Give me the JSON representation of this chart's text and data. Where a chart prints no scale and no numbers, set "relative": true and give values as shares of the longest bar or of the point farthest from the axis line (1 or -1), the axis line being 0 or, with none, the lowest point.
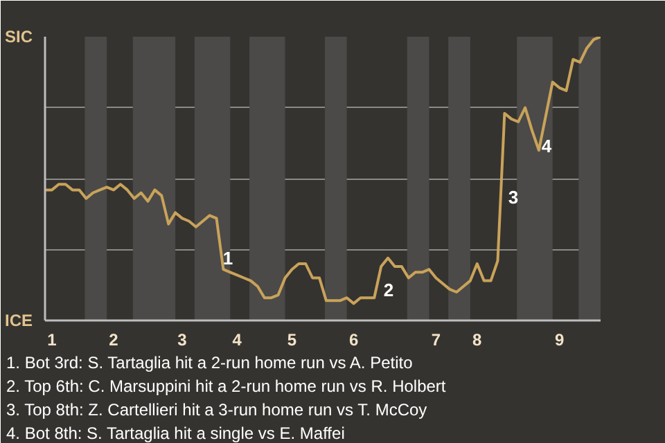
{
  "chart_data": {
    "type": "line",
    "relative": true,
    "categories": [
      null,
      "1",
      null,
      null,
      null,
      null,
      null,
      null,
      null,
      null,
      "2",
      null,
      null,
      null,
      null,
      null,
      null,
      null,
      null,
      null,
      "3",
      null,
      null,
      null,
      null,
      null,
      null,
      null,
      "4",
      null,
      null,
      null,
      null,
      null,
      null,
      null,
      "5",
      null,
      null,
      null,
      null,
      null,
      null,
      null,
      null,
      "6",
      null,
      null,
      null,
      null,
      null,
      null,
      null,
      null,
      null,
      null,
      null,
      "7",
      null,
      null,
      null,
      null,
      null,
      "8",
      null,
      null,
      null,
      null,
      null,
      null,
      null,
      null,
      null,
      null,
      null,
      "9",
      null,
      null,
      null,
      null,
      null,
      null
    ],
    "series": [
      {
        "color": "#c9a35a",
        "values": [
          0.46,
          0.46,
          0.48,
          0.48,
          0.46,
          0.46,
          0.43,
          0.45,
          0.46,
          0.47,
          0.46,
          0.48,
          0.46,
          0.43,
          0.45,
          0.42,
          0.46,
          0.44,
          0.34,
          0.38,
          0.36,
          0.35,
          0.33,
          0.35,
          0.37,
          0.36,
          0.18,
          0.17,
          0.16,
          0.15,
          0.14,
          0.12,
          0.08,
          0.08,
          0.09,
          0.15,
          0.18,
          0.2,
          0.2,
          0.15,
          0.15,
          0.07,
          0.07,
          0.07,
          0.08,
          0.06,
          0.08,
          0.08,
          0.08,
          0.19,
          0.22,
          0.19,
          0.19,
          0.15,
          0.17,
          0.17,
          0.18,
          0.15,
          0.13,
          0.11,
          0.1,
          0.12,
          0.14,
          0.2,
          0.14,
          0.14,
          0.21,
          0.73,
          0.71,
          0.7,
          0.75,
          0.67,
          0.6,
          0.72,
          0.84,
          0.82,
          0.81,
          0.92,
          0.91,
          0.96,
          0.99,
          1.0
        ]
      }
    ],
    "grid": "y",
    "marker": "none",
    "line_style": "solid",
    "annotations": [
      "SIC",
      "ICE",
      "1",
      "2",
      "3",
      "4",
      "1. Bot 3rd: S. Tartaglia hit a 2-run home run vs A. Petito",
      "2. Top 6th: C. Marsuppini hit a 2-run home run vs R. Holbert",
      "3. Top 8th: Z. Cartellieri hit a 3-run home run vs T. McCoy",
      "4. Bot 8th: S. Tartaglia hit a single vs E. Maffei"
    ]
  }
}
